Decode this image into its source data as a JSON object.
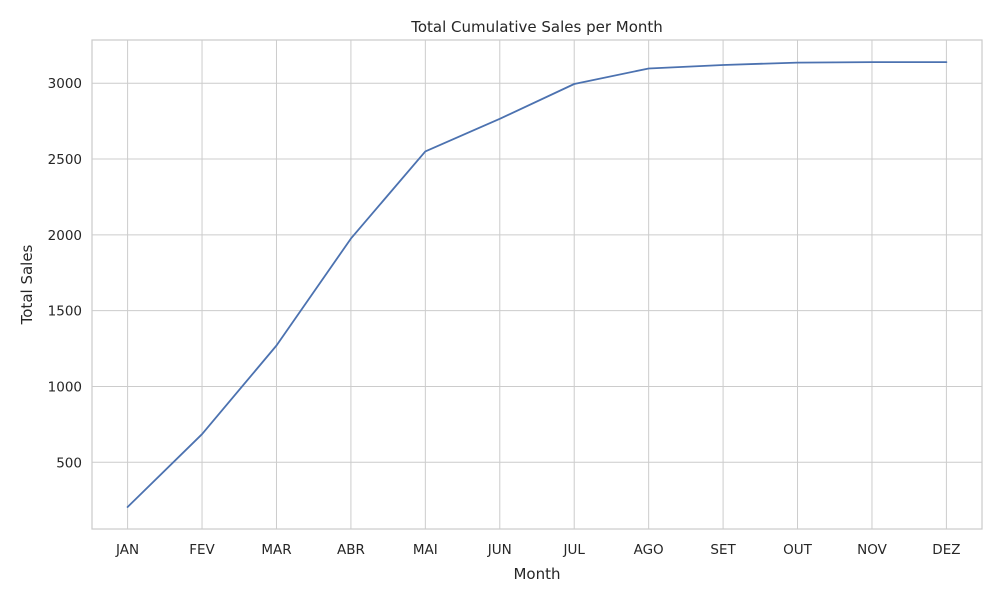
{
  "chart_data": {
    "type": "line",
    "title": "Total Cumulative Sales per Month",
    "xlabel": "Month",
    "ylabel": "Total Sales",
    "categories": [
      "JAN",
      "FEV",
      "MAR",
      "ABR",
      "MAI",
      "JUN",
      "JUL",
      "AGO",
      "SET",
      "OUT",
      "NOV",
      "DEZ"
    ],
    "series": [
      {
        "values": [
          205,
          685,
          1270,
          1975,
          2550,
          2765,
          2995,
          3097,
          3120,
          3136,
          3139,
          3139
        ]
      }
    ],
    "ylim": [
      60,
      3285
    ],
    "yticks": [
      500,
      1000,
      1500,
      2000,
      2500,
      3000
    ],
    "grid": true,
    "legend": "none",
    "colors": {
      "line": "#4c72b0",
      "grid": "#cccccc",
      "text": "#262626"
    }
  }
}
